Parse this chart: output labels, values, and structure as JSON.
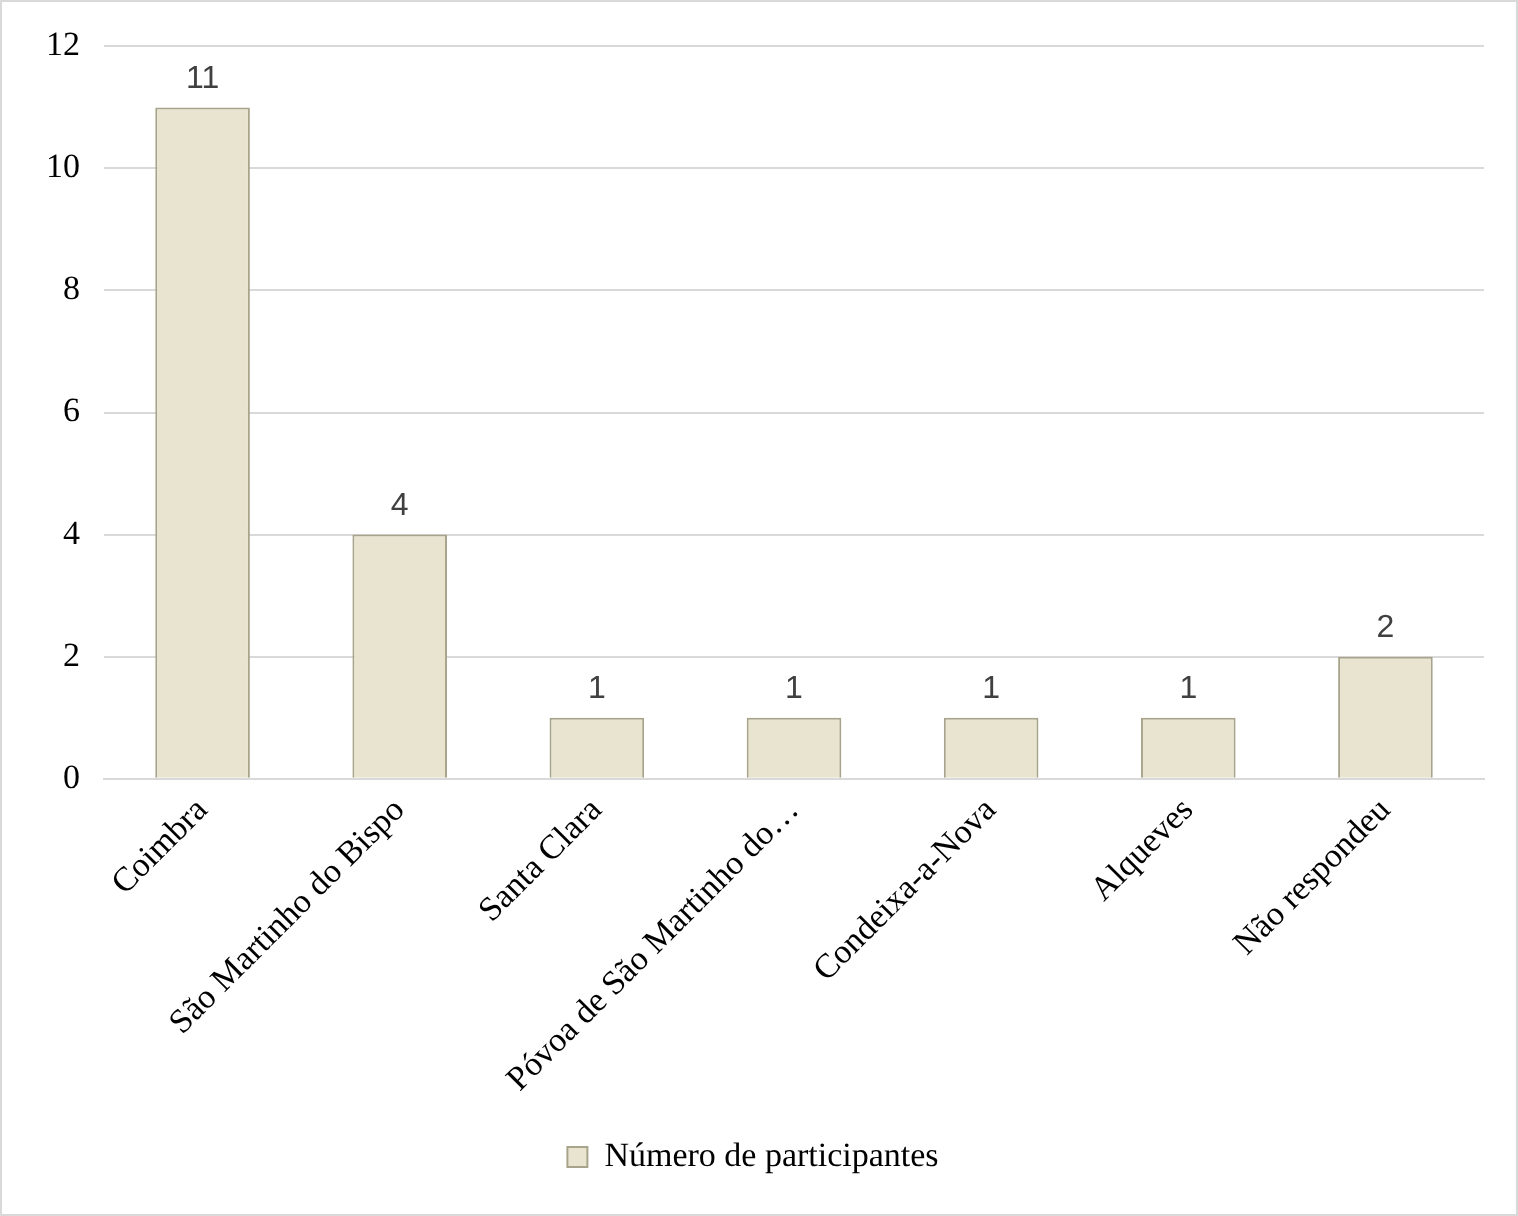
{
  "chart_data": {
    "type": "bar",
    "categories": [
      "Coimbra",
      "São Martinho do Bispo",
      "Santa Clara",
      "Póvoa de São Martinho do…",
      "Condeixa-a-Nova",
      "Alqueves",
      "Não respondeu"
    ],
    "series": [
      {
        "name": "Número de participantes",
        "color": "#e8e4cf",
        "values": [
          11,
          4,
          1,
          1,
          1,
          1,
          2
        ]
      }
    ],
    "ylim": [
      0,
      12
    ],
    "yticks": [
      0,
      2,
      4,
      6,
      8,
      10,
      12
    ],
    "grid": "y",
    "legend": "bottom",
    "data_labels": true
  }
}
